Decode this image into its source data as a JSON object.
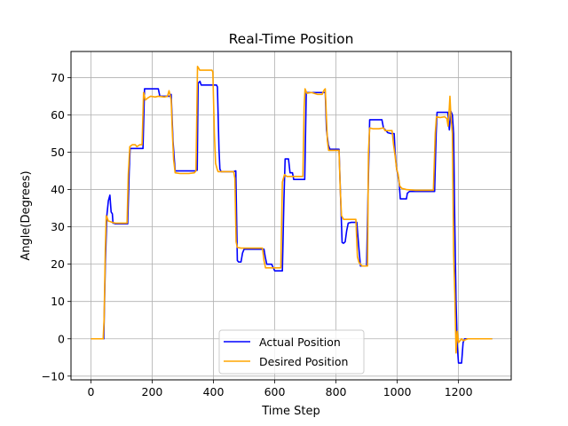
{
  "chart_data": {
    "type": "line",
    "title": "Real-Time Position",
    "xlabel": "Time Step",
    "ylabel": "Angle(Degrees)",
    "xlim": [
      -65,
      1372
    ],
    "ylim": [
      -11,
      77
    ],
    "xticks": [
      0,
      200,
      400,
      600,
      800,
      1000,
      1200
    ],
    "yticks": [
      -10,
      0,
      10,
      20,
      30,
      40,
      50,
      60,
      70
    ],
    "grid": true,
    "legend": "lower center",
    "series": [
      {
        "name": "Actual Position",
        "color": "#0000ff",
        "points": [
          [
            0,
            0
          ],
          [
            42,
            0
          ],
          [
            47,
            20
          ],
          [
            52,
            33
          ],
          [
            57,
            37
          ],
          [
            62,
            38.5
          ],
          [
            66,
            34
          ],
          [
            70,
            33.5
          ],
          [
            72,
            31
          ],
          [
            75,
            31
          ],
          [
            80,
            30.8
          ],
          [
            100,
            30.8
          ],
          [
            120,
            30.8
          ],
          [
            125,
            45
          ],
          [
            128,
            51
          ],
          [
            135,
            51
          ],
          [
            160,
            51
          ],
          [
            170,
            51
          ],
          [
            175,
            67
          ],
          [
            200,
            67
          ],
          [
            220,
            67
          ],
          [
            225,
            65
          ],
          [
            245,
            65
          ],
          [
            257,
            65
          ],
          [
            262,
            65.5
          ],
          [
            268,
            53
          ],
          [
            275,
            45
          ],
          [
            300,
            45
          ],
          [
            330,
            45
          ],
          [
            340,
            45
          ],
          [
            347,
            45.2
          ],
          [
            350,
            68.5
          ],
          [
            356,
            69
          ],
          [
            360,
            68
          ],
          [
            380,
            68
          ],
          [
            400,
            68
          ],
          [
            410,
            68
          ],
          [
            413,
            67.5
          ],
          [
            418,
            51
          ],
          [
            421,
            45.5
          ],
          [
            425,
            44.8
          ],
          [
            450,
            44.8
          ],
          [
            465,
            44.8
          ],
          [
            473,
            45
          ],
          [
            478,
            21
          ],
          [
            482,
            20.6
          ],
          [
            490,
            20.6
          ],
          [
            495,
            23
          ],
          [
            500,
            24
          ],
          [
            520,
            24
          ],
          [
            540,
            24
          ],
          [
            565,
            24
          ],
          [
            569,
            22
          ],
          [
            574,
            20
          ],
          [
            590,
            20
          ],
          [
            600,
            18.2
          ],
          [
            625,
            18.2
          ],
          [
            630,
            37
          ],
          [
            634,
            48.2
          ],
          [
            645,
            48.2
          ],
          [
            650,
            44.5
          ],
          [
            658,
            44.5
          ],
          [
            662,
            42.7
          ],
          [
            680,
            42.7
          ],
          [
            698,
            42.7
          ],
          [
            703,
            66
          ],
          [
            710,
            66
          ],
          [
            730,
            66
          ],
          [
            750,
            66
          ],
          [
            765,
            66
          ],
          [
            769,
            56
          ],
          [
            775,
            52
          ],
          [
            780,
            50.8
          ],
          [
            810,
            50.8
          ],
          [
            815,
            38
          ],
          [
            820,
            25.8
          ],
          [
            825,
            25.6
          ],
          [
            830,
            26
          ],
          [
            835,
            29
          ],
          [
            840,
            31
          ],
          [
            850,
            31.2
          ],
          [
            860,
            31.2
          ],
          [
            868,
            31.2
          ],
          [
            874,
            25
          ],
          [
            880,
            19.5
          ],
          [
            900,
            19.5
          ],
          [
            905,
            40
          ],
          [
            910,
            58.7
          ],
          [
            920,
            58.7
          ],
          [
            940,
            58.7
          ],
          [
            950,
            58.7
          ],
          [
            955,
            56.5
          ],
          [
            970,
            55.2
          ],
          [
            980,
            55
          ],
          [
            990,
            55
          ],
          [
            993,
            50
          ],
          [
            998,
            45.5
          ],
          [
            1002,
            44
          ],
          [
            1006,
            42
          ],
          [
            1010,
            37.5
          ],
          [
            1020,
            37.5
          ],
          [
            1030,
            37.5
          ],
          [
            1033,
            39
          ],
          [
            1040,
            39.5
          ],
          [
            1080,
            39.5
          ],
          [
            1110,
            39.5
          ],
          [
            1122,
            39.5
          ],
          [
            1127,
            55
          ],
          [
            1130,
            60.7
          ],
          [
            1150,
            60.7
          ],
          [
            1165,
            60.7
          ],
          [
            1170,
            56
          ],
          [
            1175,
            61
          ],
          [
            1180,
            60
          ],
          [
            1184,
            55
          ],
          [
            1188,
            30
          ],
          [
            1192,
            10
          ],
          [
            1196,
            -2
          ],
          [
            1200,
            -6.5
          ],
          [
            1210,
            -6.5
          ],
          [
            1215,
            -1
          ],
          [
            1220,
            0
          ],
          [
            1250,
            0
          ],
          [
            1310,
            0
          ]
        ]
      },
      {
        "name": "Desired Position",
        "color": "#ffa500",
        "points": [
          [
            0,
            0
          ],
          [
            40,
            0
          ],
          [
            43,
            5
          ],
          [
            47,
            24
          ],
          [
            50,
            33
          ],
          [
            53,
            32.5
          ],
          [
            57,
            31.5
          ],
          [
            60,
            31.5
          ],
          [
            70,
            31.2
          ],
          [
            80,
            31
          ],
          [
            100,
            31
          ],
          [
            118,
            31
          ],
          [
            122,
            44
          ],
          [
            127,
            51.5
          ],
          [
            135,
            52
          ],
          [
            145,
            52
          ],
          [
            150,
            51.5
          ],
          [
            160,
            52
          ],
          [
            167,
            52
          ],
          [
            172,
            66
          ],
          [
            178,
            64
          ],
          [
            185,
            64.5
          ],
          [
            195,
            65
          ],
          [
            210,
            64.8
          ],
          [
            220,
            65
          ],
          [
            240,
            64.8
          ],
          [
            250,
            65
          ],
          [
            255,
            66.5
          ],
          [
            258,
            65.5
          ],
          [
            262,
            64
          ],
          [
            266,
            55
          ],
          [
            270,
            48
          ],
          [
            275,
            44.5
          ],
          [
            290,
            44.3
          ],
          [
            320,
            44.3
          ],
          [
            338,
            44.5
          ],
          [
            343,
            45
          ],
          [
            348,
            73
          ],
          [
            352,
            72.5
          ],
          [
            355,
            72
          ],
          [
            380,
            72
          ],
          [
            395,
            72
          ],
          [
            398,
            71.5
          ],
          [
            403,
            55
          ],
          [
            407,
            47
          ],
          [
            412,
            45.5
          ],
          [
            415,
            44.8
          ],
          [
            430,
            44.8
          ],
          [
            460,
            44.8
          ],
          [
            466,
            44.8
          ],
          [
            470,
            43
          ],
          [
            474,
            26
          ],
          [
            478,
            24.5
          ],
          [
            490,
            24.3
          ],
          [
            520,
            24.3
          ],
          [
            545,
            24.3
          ],
          [
            560,
            24.3
          ],
          [
            565,
            21
          ],
          [
            570,
            19
          ],
          [
            580,
            19
          ],
          [
            600,
            19
          ],
          [
            615,
            19
          ],
          [
            620,
            19
          ],
          [
            625,
            42
          ],
          [
            632,
            44
          ],
          [
            640,
            43.5
          ],
          [
            660,
            43.5
          ],
          [
            680,
            43.5
          ],
          [
            692,
            43.5
          ],
          [
            696,
            62
          ],
          [
            699,
            67
          ],
          [
            705,
            65.8
          ],
          [
            720,
            66
          ],
          [
            740,
            65.5
          ],
          [
            755,
            65.5
          ],
          [
            760,
            66.5
          ],
          [
            765,
            67
          ],
          [
            768,
            61
          ],
          [
            772,
            53
          ],
          [
            776,
            50.5
          ],
          [
            790,
            50.5
          ],
          [
            810,
            50.5
          ],
          [
            814,
            40
          ],
          [
            818,
            33
          ],
          [
            825,
            32
          ],
          [
            850,
            32
          ],
          [
            865,
            32
          ],
          [
            870,
            22
          ],
          [
            875,
            20.5
          ],
          [
            885,
            19.5
          ],
          [
            903,
            19.5
          ],
          [
            906,
            50
          ],
          [
            910,
            56.5
          ],
          [
            920,
            56.3
          ],
          [
            940,
            56.3
          ],
          [
            955,
            56.5
          ],
          [
            960,
            55.8
          ],
          [
            975,
            55.8
          ],
          [
            983,
            55.8
          ],
          [
            988,
            52
          ],
          [
            993,
            49
          ],
          [
            998,
            45.5
          ],
          [
            1003,
            44
          ],
          [
            1008,
            41
          ],
          [
            1015,
            40.3
          ],
          [
            1030,
            40
          ],
          [
            1060,
            39.8
          ],
          [
            1090,
            39.8
          ],
          [
            1112,
            39.8
          ],
          [
            1118,
            39.8
          ],
          [
            1124,
            55
          ],
          [
            1128,
            59.5
          ],
          [
            1140,
            59.3
          ],
          [
            1155,
            59.5
          ],
          [
            1162,
            59
          ],
          [
            1166,
            57
          ],
          [
            1170,
            62
          ],
          [
            1172,
            65
          ],
          [
            1175,
            60
          ],
          [
            1180,
            55
          ],
          [
            1184,
            23
          ],
          [
            1188,
            12
          ],
          [
            1192,
            -3.8
          ],
          [
            1196,
            2
          ],
          [
            1200,
            -1
          ],
          [
            1210,
            0
          ],
          [
            1215,
            -0.5
          ],
          [
            1230,
            0
          ],
          [
            1260,
            0
          ],
          [
            1310,
            0
          ]
        ]
      }
    ]
  }
}
